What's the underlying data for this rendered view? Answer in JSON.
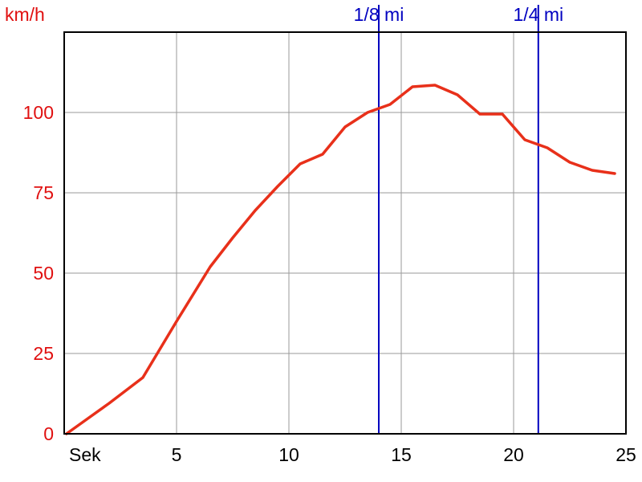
{
  "chart_data": {
    "type": "line",
    "y_unit_label": "km/h",
    "x_unit_label": "Sek",
    "xlim": [
      0,
      25
    ],
    "ylim": [
      0,
      125
    ],
    "x_ticks": [
      5,
      10,
      15,
      20,
      25
    ],
    "y_ticks": [
      0,
      25,
      50,
      75,
      100
    ],
    "grid": true,
    "colors": {
      "line": "#e8301a",
      "y_ticks": "#e01010",
      "markers": "#0000c0",
      "grid": "#9a9a9a",
      "frame": "#000000"
    },
    "markers": [
      {
        "x": 14.0,
        "label": "1/8 mi"
      },
      {
        "x": 21.1,
        "label": "1/4 mi"
      }
    ],
    "series": [
      {
        "x": [
          0.1,
          1.0,
          2.0,
          3.5,
          5.0,
          6.5,
          7.5,
          8.5,
          9.5,
          10.5,
          11.5,
          12.5,
          13.5,
          14.5,
          15.5,
          16.5,
          17.5,
          18.5,
          19.5,
          20.5,
          21.5,
          22.5,
          23.5,
          24.5
        ],
        "values": [
          0,
          4.5,
          9.5,
          17.5,
          35,
          52,
          61,
          69.5,
          77,
          84,
          87,
          95.5,
          100,
          102.5,
          108,
          108.5,
          105.5,
          99.5,
          99.5,
          91.5,
          89,
          84.5,
          82,
          81
        ]
      }
    ]
  }
}
